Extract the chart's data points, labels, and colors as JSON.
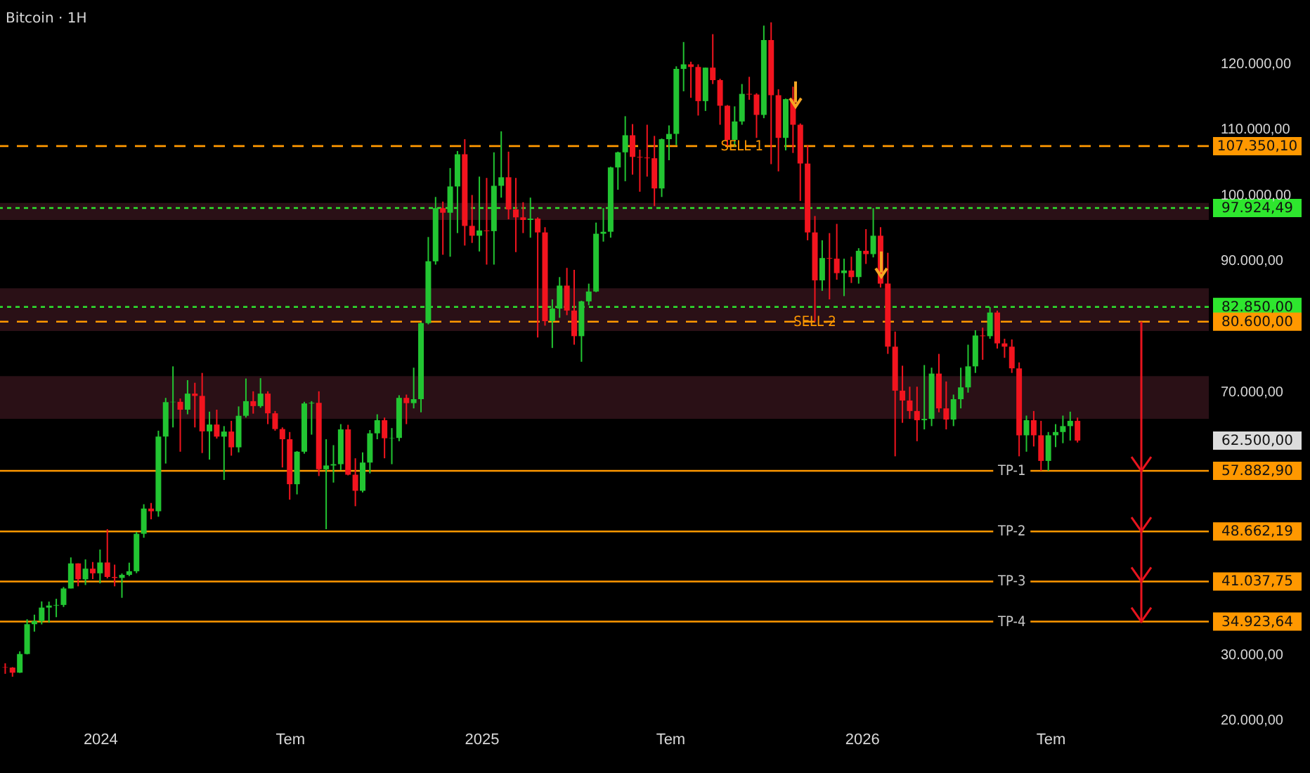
{
  "chart_data": {
    "type": "candlestick",
    "title": "Bitcoin · 1H",
    "x": [
      "2023-10-02",
      "2023-10-09",
      "2023-10-16",
      "2023-10-23",
      "2023-10-30",
      "2023-11-06",
      "2023-11-13",
      "2023-11-20",
      "2023-11-27",
      "2023-12-04",
      "2023-12-11",
      "2023-12-18",
      "2023-12-25",
      "2024-01-01",
      "2024-01-08",
      "2024-01-15",
      "2024-01-22",
      "2024-01-29",
      "2024-02-05",
      "2024-02-12",
      "2024-02-19",
      "2024-02-26",
      "2024-03-04",
      "2024-03-11",
      "2024-03-18",
      "2024-03-25",
      "2024-04-01",
      "2024-04-08",
      "2024-04-15",
      "2024-04-22",
      "2024-04-29",
      "2024-05-06",
      "2024-05-13",
      "2024-05-20",
      "2024-05-27",
      "2024-06-03",
      "2024-06-10",
      "2024-06-17",
      "2024-06-24",
      "2024-07-01",
      "2024-07-08",
      "2024-07-15",
      "2024-07-22",
      "2024-07-29",
      "2024-08-05",
      "2024-08-12",
      "2024-08-19",
      "2024-08-26",
      "2024-09-02",
      "2024-09-09",
      "2024-09-16",
      "2024-09-23",
      "2024-09-30",
      "2024-10-07",
      "2024-10-14",
      "2024-10-21",
      "2024-10-28",
      "2024-11-04",
      "2024-11-11",
      "2024-11-18",
      "2024-11-25",
      "2024-12-02",
      "2024-12-09",
      "2024-12-16",
      "2024-12-23",
      "2024-12-30",
      "2025-01-06",
      "2025-01-13",
      "2025-01-20",
      "2025-01-27",
      "2025-02-03",
      "2025-02-10",
      "2025-02-17",
      "2025-02-24",
      "2025-03-03",
      "2025-03-10",
      "2025-03-17",
      "2025-03-24",
      "2025-03-31",
      "2025-04-07",
      "2025-04-14",
      "2025-04-21",
      "2025-04-28",
      "2025-05-05",
      "2025-05-12",
      "2025-05-19",
      "2025-05-26",
      "2025-06-02",
      "2025-06-09",
      "2025-06-16",
      "2025-06-23",
      "2025-06-30",
      "2025-07-07",
      "2025-07-14",
      "2025-07-21",
      "2025-07-28",
      "2025-08-04",
      "2025-08-11",
      "2025-08-18",
      "2025-08-25",
      "2025-09-01",
      "2025-09-08",
      "2025-09-15",
      "2025-09-22",
      "2025-09-29",
      "2025-10-06",
      "2025-10-13",
      "2025-10-20",
      "2025-10-27",
      "2025-11-03",
      "2025-11-10",
      "2025-11-17",
      "2025-11-24",
      "2025-12-01",
      "2025-12-08",
      "2025-12-15",
      "2025-12-22",
      "2025-12-29",
      "2026-01-05",
      "2026-01-12",
      "2026-01-19",
      "2026-01-26",
      "2026-02-02",
      "2026-02-09",
      "2026-02-16",
      "2026-02-23",
      "2026-03-02",
      "2026-03-09",
      "2026-03-16",
      "2026-03-23",
      "2026-03-30",
      "2026-04-06",
      "2026-04-13",
      "2026-04-20",
      "2026-04-27",
      "2026-05-04",
      "2026-05-11",
      "2026-05-18",
      "2026-05-25",
      "2026-06-01",
      "2026-06-08",
      "2026-06-15",
      "2026-06-22",
      "2026-06-29",
      "2026-07-06",
      "2026-07-13",
      "2026-07-20",
      "2026-07-27"
    ],
    "ohlc": [
      [
        27970,
        28580,
        26970,
        27930
      ],
      [
        27930,
        27990,
        26530,
        27150
      ],
      [
        27150,
        30400,
        27110,
        29990
      ],
      [
        29990,
        35280,
        29930,
        34530
      ],
      [
        34530,
        35980,
        33400,
        35000
      ],
      [
        35000,
        38000,
        34500,
        37060
      ],
      [
        37060,
        37970,
        34750,
        37370
      ],
      [
        37370,
        38400,
        35600,
        37460
      ],
      [
        37460,
        40200,
        37150,
        39970
      ],
      [
        39970,
        44700,
        39970,
        43790
      ],
      [
        43790,
        43800,
        40300,
        41370
      ],
      [
        41370,
        44400,
        40500,
        42990
      ],
      [
        42990,
        44000,
        41400,
        42280
      ],
      [
        42280,
        45900,
        40750,
        43930
      ],
      [
        43930,
        49000,
        41500,
        41730
      ],
      [
        41730,
        43600,
        40300,
        41580
      ],
      [
        41580,
        42250,
        38550,
        42040
      ],
      [
        42040,
        43900,
        41850,
        42590
      ],
      [
        42590,
        48600,
        42300,
        48300
      ],
      [
        48300,
        52800,
        47700,
        52140
      ],
      [
        52140,
        52980,
        50500,
        51730
      ],
      [
        51730,
        64000,
        50900,
        63110
      ],
      [
        63110,
        69000,
        59000,
        68350
      ],
      [
        68350,
        73800,
        64500,
        68400
      ],
      [
        68400,
        68900,
        60800,
        67200
      ],
      [
        67200,
        71700,
        66500,
        69650
      ],
      [
        69650,
        71300,
        64500,
        69300
      ],
      [
        69300,
        72800,
        60600,
        63900
      ],
      [
        63900,
        66900,
        59600,
        64940
      ],
      [
        64940,
        67200,
        62800,
        63100
      ],
      [
        63100,
        64700,
        56500,
        63870
      ],
      [
        63870,
        65500,
        60200,
        61470
      ],
      [
        61470,
        67700,
        60700,
        66270
      ],
      [
        66270,
        71950,
        66000,
        68500
      ],
      [
        68500,
        70000,
        66600,
        67750
      ],
      [
        67750,
        72000,
        67500,
        69650
      ],
      [
        69650,
        70000,
        65000,
        66650
      ],
      [
        66650,
        67000,
        64000,
        64250
      ],
      [
        64250,
        64500,
        58400,
        62700
      ],
      [
        62700,
        63800,
        53500,
        55850
      ],
      [
        55850,
        60900,
        54300,
        60800
      ],
      [
        60800,
        68400,
        60500,
        68150
      ],
      [
        68150,
        68500,
        63400,
        68250
      ],
      [
        68250,
        70000,
        57100,
        58120
      ],
      [
        58120,
        62700,
        49000,
        58700
      ],
      [
        58700,
        61800,
        56100,
        58900
      ],
      [
        58900,
        65000,
        58000,
        64200
      ],
      [
        64200,
        64900,
        57200,
        57300
      ],
      [
        57300,
        59800,
        52500,
        54850
      ],
      [
        54850,
        60700,
        54600,
        59150
      ],
      [
        59150,
        64100,
        57500,
        63600
      ],
      [
        63600,
        66500,
        62700,
        65600
      ],
      [
        65600,
        66000,
        59800,
        62850
      ],
      [
        62850,
        64400,
        58900,
        62900
      ],
      [
        62900,
        69400,
        62400,
        69000
      ],
      [
        69000,
        69500,
        65000,
        68200
      ],
      [
        68200,
        73600,
        67400,
        68800
      ],
      [
        68800,
        80500,
        66800,
        80400
      ],
      [
        80400,
        93500,
        80200,
        89800
      ],
      [
        89800,
        99600,
        89300,
        97900
      ],
      [
        97900,
        98900,
        90800,
        97200
      ],
      [
        97200,
        104000,
        90500,
        101200
      ],
      [
        101200,
        106600,
        94100,
        106100
      ],
      [
        106100,
        108400,
        92200,
        95200
      ],
      [
        95200,
        99900,
        92600,
        93700
      ],
      [
        93700,
        102700,
        91300,
        94500
      ],
      [
        94500,
        102500,
        89300,
        94400
      ],
      [
        94400,
        106400,
        89300,
        101300
      ],
      [
        101300,
        109600,
        99500,
        102600
      ],
      [
        102600,
        106500,
        96200,
        97700
      ],
      [
        97700,
        102500,
        91200,
        96500
      ],
      [
        96500,
        98800,
        94100,
        96100
      ],
      [
        96100,
        99500,
        93400,
        96300
      ],
      [
        96300,
        96500,
        78200,
        94200
      ],
      [
        94200,
        95000,
        80000,
        80700
      ],
      [
        80700,
        84000,
        76600,
        82600
      ],
      [
        82600,
        87400,
        81200,
        86100
      ],
      [
        86100,
        88800,
        81600,
        82300
      ],
      [
        82300,
        88500,
        77100,
        78400
      ],
      [
        78400,
        83800,
        74500,
        83700
      ],
      [
        83700,
        86400,
        83100,
        85200
      ],
      [
        85200,
        95700,
        85100,
        94000
      ],
      [
        94000,
        97900,
        92800,
        94300
      ],
      [
        94300,
        104200,
        93400,
        104100
      ],
      [
        104100,
        106500,
        100700,
        106400
      ],
      [
        106400,
        111900,
        102000,
        109000
      ],
      [
        109000,
        110700,
        103000,
        105700
      ],
      [
        105700,
        106800,
        100400,
        105600
      ],
      [
        105600,
        110600,
        102700,
        105500
      ],
      [
        105500,
        108900,
        98200,
        100900
      ],
      [
        100900,
        108500,
        99600,
        108400
      ],
      [
        108400,
        110500,
        105200,
        109200
      ],
      [
        109200,
        119500,
        107500,
        119100
      ],
      [
        119100,
        123200,
        115700,
        119800
      ],
      [
        119800,
        120200,
        114700,
        119400
      ],
      [
        119400,
        119800,
        112000,
        114200
      ],
      [
        114200,
        119300,
        112700,
        119300
      ],
      [
        119300,
        124400,
        116800,
        117400
      ],
      [
        117400,
        117600,
        110600,
        113500
      ],
      [
        113500,
        113600,
        107300,
        108300
      ],
      [
        108300,
        113400,
        107300,
        111100
      ],
      [
        111100,
        116800,
        110600,
        115300
      ],
      [
        115300,
        117900,
        114400,
        115200
      ],
      [
        115200,
        115400,
        108600,
        112100
      ],
      [
        112100,
        125700,
        111600,
        123500
      ],
      [
        123500,
        126200,
        104600,
        115100
      ],
      [
        115100,
        116000,
        103500,
        108600
      ],
      [
        108600,
        114600,
        106700,
        114500
      ],
      [
        114500,
        116400,
        106300,
        110600
      ],
      [
        110600,
        110800,
        99000,
        104700
      ],
      [
        104700,
        107500,
        93000,
        94200
      ],
      [
        94200,
        96700,
        80600,
        86900
      ],
      [
        86900,
        93000,
        85300,
        90300
      ],
      [
        90300,
        94100,
        84000,
        90200
      ],
      [
        90200,
        95500,
        87000,
        88000
      ],
      [
        88000,
        90200,
        84500,
        88400
      ],
      [
        88400,
        90500,
        86500,
        87400
      ],
      [
        87400,
        91800,
        86400,
        91400
      ],
      [
        91400,
        94700,
        89400,
        90900
      ],
      [
        90900,
        97900,
        90400,
        93700
      ],
      [
        93700,
        95000,
        85800,
        86400
      ],
      [
        86400,
        91100,
        75700,
        76800
      ],
      [
        76800,
        79100,
        60100,
        70100
      ],
      [
        70100,
        73900,
        65200,
        68600
      ],
      [
        68600,
        70700,
        65800,
        67000
      ],
      [
        67000,
        70700,
        62400,
        65600
      ],
      [
        65600,
        74000,
        64200,
        65800
      ],
      [
        65800,
        73600,
        64700,
        72700
      ],
      [
        72700,
        75700,
        66800,
        67400
      ],
      [
        67400,
        71500,
        64200,
        65700
      ],
      [
        65700,
        69500,
        64700,
        68800
      ],
      [
        68800,
        73600,
        67400,
        70600
      ],
      [
        70600,
        77100,
        69800,
        73800
      ],
      [
        73800,
        79300,
        72800,
        78500
      ],
      [
        78500,
        79700,
        74800,
        78400
      ],
      [
        78400,
        82850,
        78000,
        82000
      ],
      [
        82000,
        82300,
        76500,
        77300
      ],
      [
        77300,
        78000,
        75100,
        76800
      ],
      [
        76800,
        77900,
        72800,
        73500
      ],
      [
        73500,
        74400,
        60100,
        63300
      ],
      [
        63300,
        66300,
        60800,
        65600
      ],
      [
        65600,
        67000,
        61600,
        63300
      ],
      [
        63300,
        65500,
        57900,
        59400
      ],
      [
        59400,
        63800,
        57900,
        63300
      ],
      [
        63300,
        65000,
        61500,
        63800
      ],
      [
        63800,
        66300,
        62100,
        64700
      ],
      [
        64700,
        66900,
        62500,
        65500
      ],
      [
        65500,
        66000,
        62200,
        62500
      ]
    ],
    "colors": [
      "#f2141e",
      "#f2141e",
      "#22c532",
      "#22c532",
      "#22c532",
      "#22c532",
      "#22c532",
      "#22c532",
      "#22c532",
      "#22c532",
      "#f2141e",
      "#22c532",
      "#f2141e",
      "#22c532",
      "#f2141e",
      "#f2141e",
      "#22c532",
      "#22c532",
      "#22c532",
      "#22c532",
      "#f2141e",
      "#22c532",
      "#22c532",
      "#22c532",
      "#f2141e",
      "#22c532",
      "#f2141e",
      "#f2141e",
      "#22c532",
      "#f2141e",
      "#22c532",
      "#f2141e",
      "#22c532",
      "#22c532",
      "#f2141e",
      "#22c532",
      "#f2141e",
      "#f2141e",
      "#f2141e",
      "#f2141e",
      "#22c532",
      "#22c532",
      "#22c532",
      "#f2141e",
      "#22c532",
      "#22c532",
      "#22c532",
      "#f2141e",
      "#f2141e",
      "#22c532",
      "#22c532",
      "#22c532",
      "#f2141e",
      "#22c532",
      "#22c532",
      "#f2141e",
      "#22c532",
      "#22c532",
      "#22c532",
      "#22c532",
      "#f2141e",
      "#22c532",
      "#22c532",
      "#f2141e",
      "#f2141e",
      "#22c532",
      "#f2141e",
      "#22c532",
      "#22c532",
      "#f2141e",
      "#f2141e",
      "#f2141e",
      "#22c532",
      "#f2141e",
      "#f2141e",
      "#22c532",
      "#22c532",
      "#f2141e",
      "#f2141e",
      "#22c532",
      "#22c532",
      "#22c532",
      "#22c532",
      "#22c532",
      "#22c532",
      "#22c532",
      "#f2141e",
      "#f2141e",
      "#f2141e",
      "#f2141e",
      "#22c532",
      "#22c532",
      "#22c532",
      "#22c532",
      "#f2141e",
      "#f2141e",
      "#22c532",
      "#f2141e",
      "#f2141e",
      "#f2141e",
      "#22c532",
      "#22c532",
      "#f2141e",
      "#f2141e",
      "#22c532",
      "#f2141e",
      "#f2141e",
      "#22c532",
      "#f2141e",
      "#f2141e",
      "#f2141e",
      "#f2141e",
      "#22c532",
      "#f2141e",
      "#f2141e",
      "#22c532",
      "#f2141e",
      "#22c532",
      "#f2141e",
      "#22c532",
      "#f2141e",
      "#f2141e",
      "#f2141e",
      "#f2141e",
      "#f2141e",
      "#f2141e",
      "#22c532",
      "#22c532",
      "#f2141e",
      "#f2141e",
      "#22c532",
      "#22c532",
      "#22c532",
      "#22c532",
      "#f2141e",
      "#22c532",
      "#f2141e",
      "#f2141e",
      "#f2141e",
      "#f2141e",
      "#22c532",
      "#f2141e",
      "#f2141e",
      "#22c532",
      "#22c532",
      "#22c532",
      "#22c532",
      "#f2141e"
    ],
    "xlim": [
      "2023-09-27",
      "2026-11-30"
    ],
    "xticks": [
      {
        "value": "2024-01-01",
        "label": "2024"
      },
      {
        "value": "2024-07-01",
        "label": "Tem"
      },
      {
        "value": "2025-01-01",
        "label": "2025"
      },
      {
        "value": "2025-07-01",
        "label": "Tem"
      },
      {
        "value": "2026-01-01",
        "label": "2026"
      },
      {
        "value": "2026-07-01",
        "label": "Tem"
      }
    ],
    "ylim": [
      20000,
      129600
    ],
    "yticks": [
      {
        "value": 20000,
        "label": "20.000,00"
      },
      {
        "value": 30000,
        "label": "30.000,00"
      },
      {
        "value": 70000,
        "label": "70.000,00"
      },
      {
        "value": 90000,
        "label": "90.000,00"
      },
      {
        "value": 100000,
        "label": "100.000,00"
      },
      {
        "value": 110000,
        "label": "110.000,00"
      },
      {
        "value": 120000,
        "label": "120.000,00"
      }
    ],
    "ref_lines": [
      {
        "axis": "y",
        "value": 107350.1,
        "label": "107.350,10",
        "color": "#ff9800",
        "line_style": "dashed"
      },
      {
        "axis": "y",
        "value": 97924.49,
        "label": "97.924,49",
        "color": "#2ee62e",
        "line_style": "dotted"
      },
      {
        "axis": "y",
        "value": 82850,
        "label": "82.850,00",
        "color": "#2ee62e",
        "line_style": "dotted"
      },
      {
        "axis": "y",
        "value": 80600,
        "label": "80.600,00",
        "color": "#ff9800",
        "line_style": "dashed"
      },
      {
        "axis": "y",
        "value": 57882.9,
        "label": "57.882,90",
        "color": "#ff9800",
        "line_style": "solid"
      },
      {
        "axis": "y",
        "value": 48662.19,
        "label": "48.662,19",
        "color": "#ff9800",
        "line_style": "solid"
      },
      {
        "axis": "y",
        "value": 41037.75,
        "label": "41.037,75",
        "color": "#ff9800",
        "line_style": "solid"
      },
      {
        "axis": "y",
        "value": 34923.64,
        "label": "34.923,64",
        "color": "#ff9800",
        "line_style": "solid"
      }
    ],
    "bands": [
      {
        "axis": "y",
        "from": 96100,
        "to": 98700,
        "color": "#2a1016"
      },
      {
        "axis": "y",
        "from": 79200,
        "to": 85700,
        "color": "#2a1016"
      },
      {
        "axis": "y",
        "from": 65800,
        "to": 72300,
        "color": "#2a1016"
      }
    ],
    "annotations": [
      {
        "text": "SELL-1",
        "x": "2025-09-08",
        "y": 107350.1
      },
      {
        "text": "SELL-2",
        "x": "2025-11-17",
        "y": 80600
      },
      {
        "text": "TP-1",
        "x": "2026-05-25",
        "y": 57882.9
      },
      {
        "text": "TP-2",
        "x": "2026-05-25",
        "y": 48662.19
      },
      {
        "text": "TP-3",
        "x": "2026-05-25",
        "y": 41037.75
      },
      {
        "text": "TP-4",
        "x": "2026-05-25",
        "y": 34923.64
      },
      "62.500,00"
    ],
    "grid": false
  }
}
